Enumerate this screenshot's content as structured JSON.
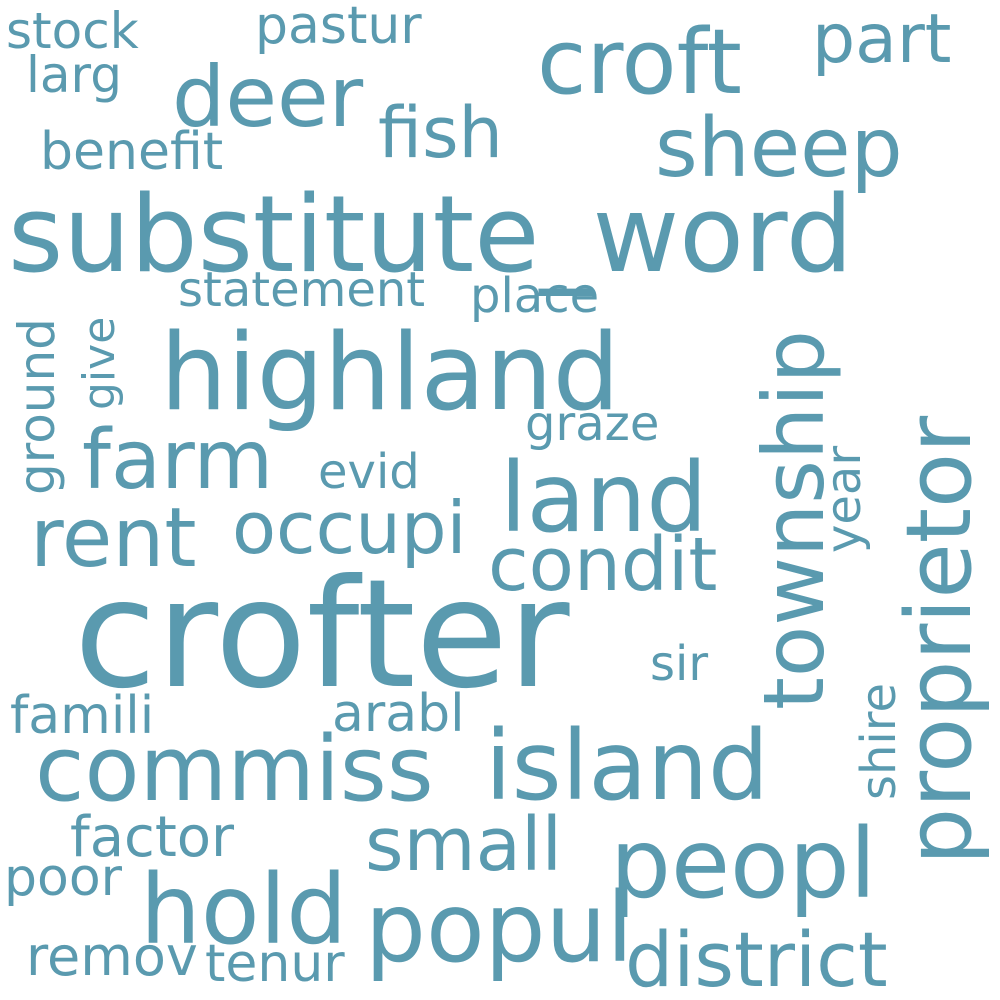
{
  "color": "#5a9aaf",
  "background": "#ffffff",
  "words": {
    "stock": "stock",
    "pastur": "pastur",
    "part": "part",
    "croft": "croft",
    "larg": "larg",
    "deer": "deer",
    "fish": "fish",
    "sheep": "sheep",
    "benefit": "benefit",
    "substitute_word": "substitute_word",
    "statement": "statement",
    "place": "place",
    "give": "give",
    "ground": "ground",
    "highland": "highland",
    "township": "township",
    "proprietor": "proprietor",
    "graze": "graze",
    "farm": "farm",
    "evid": "evid",
    "year": "year",
    "land": "land",
    "rent": "rent",
    "occupi": "occupi",
    "condit": "condit",
    "crofter": "crofter",
    "sir": "sir",
    "famili": "famili",
    "arabl": "arabl",
    "shire": "shire",
    "commiss": "commiss",
    "island": "island",
    "factor": "factor",
    "small": "small",
    "peopl": "peopl",
    "poor": "poor",
    "hold": "hold",
    "popul": "popul",
    "district": "district",
    "remov": "remov",
    "tenur": "tenur"
  }
}
